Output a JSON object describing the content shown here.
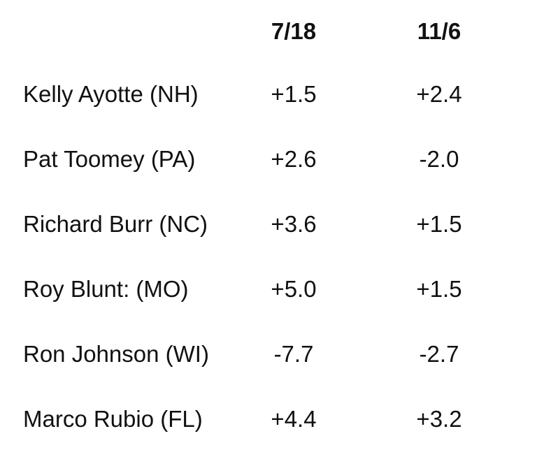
{
  "table": {
    "header": [
      "7/18",
      "11/6"
    ],
    "rows": [
      [
        "Kelly Ayotte (NH)",
        "+1.5",
        "+2.4"
      ],
      [
        "Pat Toomey (PA)",
        "+2.6",
        "-2.0"
      ],
      [
        "Richard Burr (NC)",
        "+3.6",
        "+1.5"
      ],
      [
        "Roy Blunt: (MO)",
        "+5.0",
        "+1.5"
      ],
      [
        "Ron Johnson (WI)",
        "-7.7",
        "-2.7"
      ],
      [
        "Marco Rubio (FL)",
        "+4.4",
        "+3.2"
      ]
    ]
  }
}
